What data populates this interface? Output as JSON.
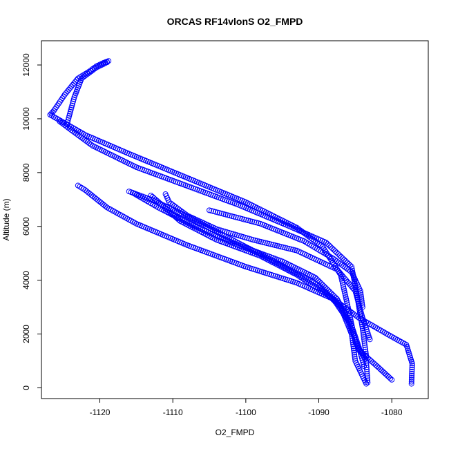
{
  "chart_data": {
    "type": "scatter",
    "title": "ORCAS RF14vlonS O2_FMPD",
    "xlabel": "O2_FMPD",
    "ylabel": "Altitude (m)",
    "xlim": [
      -1128,
      -1075
    ],
    "ylim": [
      -400,
      12900
    ],
    "x_ticks": [
      -1120,
      -1110,
      -1100,
      -1090,
      -1080
    ],
    "y_ticks": [
      0,
      2000,
      4000,
      6000,
      8000,
      10000,
      12000
    ],
    "x_tick_labels": [
      "-1120",
      "-1110",
      "-1100",
      "-1090",
      "-1080"
    ],
    "y_tick_labels": [
      "0",
      "2000",
      "4000",
      "6000",
      "8000",
      "10000",
      "12000"
    ],
    "grid": false,
    "marker": "open-circle",
    "color": "#0000ff",
    "series": [
      {
        "x": [
          -1118.8,
          -1119.5,
          -1120.5,
          -1121.5,
          -1123.0,
          -1124.8,
          -1126.3,
          -1126.8
        ],
        "y": [
          12150,
          12080,
          11950,
          11750,
          11500,
          10900,
          10300,
          10150
        ]
      },
      {
        "x": [
          -1119.0,
          -1120.5,
          -1122.5,
          -1123.5,
          -1124.5
        ],
        "y": [
          12100,
          11900,
          11500,
          10800,
          9800
        ]
      },
      {
        "x": [
          -1126.8,
          -1122.0,
          -1116.0,
          -1108.0,
          -1100.0,
          -1093.0,
          -1089.5,
          -1087.0,
          -1086.0,
          -1085.0,
          -1083.5,
          -1083.3
        ],
        "y": [
          10150,
          9400,
          8700,
          7800,
          6900,
          5950,
          5250,
          4200,
          3000,
          1700,
          1000,
          200
        ]
      },
      {
        "x": [
          -1125.5,
          -1121.0,
          -1115.0,
          -1108.0,
          -1101.0,
          -1094.0,
          -1089.0,
          -1085.5,
          -1084.8,
          -1084.0,
          -1083.5
        ],
        "y": [
          9900,
          9000,
          8200,
          7500,
          6800,
          6000,
          5400,
          4500,
          3500,
          2200,
          1200
        ]
      },
      {
        "x": [
          -1123.0,
          -1122.0,
          -1119.0,
          -1115.0,
          -1108.0,
          -1100.0,
          -1093.0,
          -1088.0,
          -1086.0,
          -1084.5,
          -1082.0,
          -1080.0
        ],
        "y": [
          7520,
          7350,
          6700,
          6100,
          5300,
          4500,
          3900,
          3300,
          2500,
          1400,
          800,
          300
        ]
      },
      {
        "x": [
          -1116.0,
          -1113.0,
          -1109.0,
          -1104.0,
          -1099.0,
          -1094.0,
          -1090.0,
          -1087.0,
          -1085.5,
          -1085.0,
          -1083.5
        ],
        "y": [
          7300,
          7000,
          6500,
          5800,
          5100,
          4400,
          3800,
          3000,
          2000,
          1000,
          150
        ]
      },
      {
        "x": [
          -1115.5,
          -1112.0,
          -1107.0,
          -1101.0,
          -1095.0,
          -1090.5,
          -1087.5,
          -1085.5,
          -1084.5,
          -1083.8
        ],
        "y": [
          7250,
          6700,
          6000,
          5300,
          4700,
          4100,
          3300,
          2300,
          1500,
          800
        ]
      },
      {
        "x": [
          -1113.0,
          -1111.5,
          -1109.0,
          -1104.0,
          -1098.0,
          -1093.0,
          -1088.5,
          -1084.5,
          -1080.0,
          -1078.0,
          -1077.2,
          -1077.3
        ],
        "y": [
          7150,
          6800,
          6200,
          5500,
          4900,
          4200,
          3400,
          2600,
          1900,
          1600,
          900,
          150
        ]
      },
      {
        "x": [
          -1111.0,
          -1110.5,
          -1108.0,
          -1104.0,
          -1099.0,
          -1093.0,
          -1087.5,
          -1085.0,
          -1084.0,
          -1083.0
        ],
        "y": [
          7200,
          6900,
          6400,
          5900,
          5500,
          5100,
          4400,
          3600,
          2600,
          1800
        ]
      },
      {
        "x": [
          -1105.0,
          -1098.0,
          -1092.0,
          -1088.0,
          -1085.5,
          -1084.3,
          -1084.0
        ],
        "y": [
          6600,
          6100,
          5450,
          4800,
          4300,
          3600,
          3000
        ]
      }
    ]
  }
}
